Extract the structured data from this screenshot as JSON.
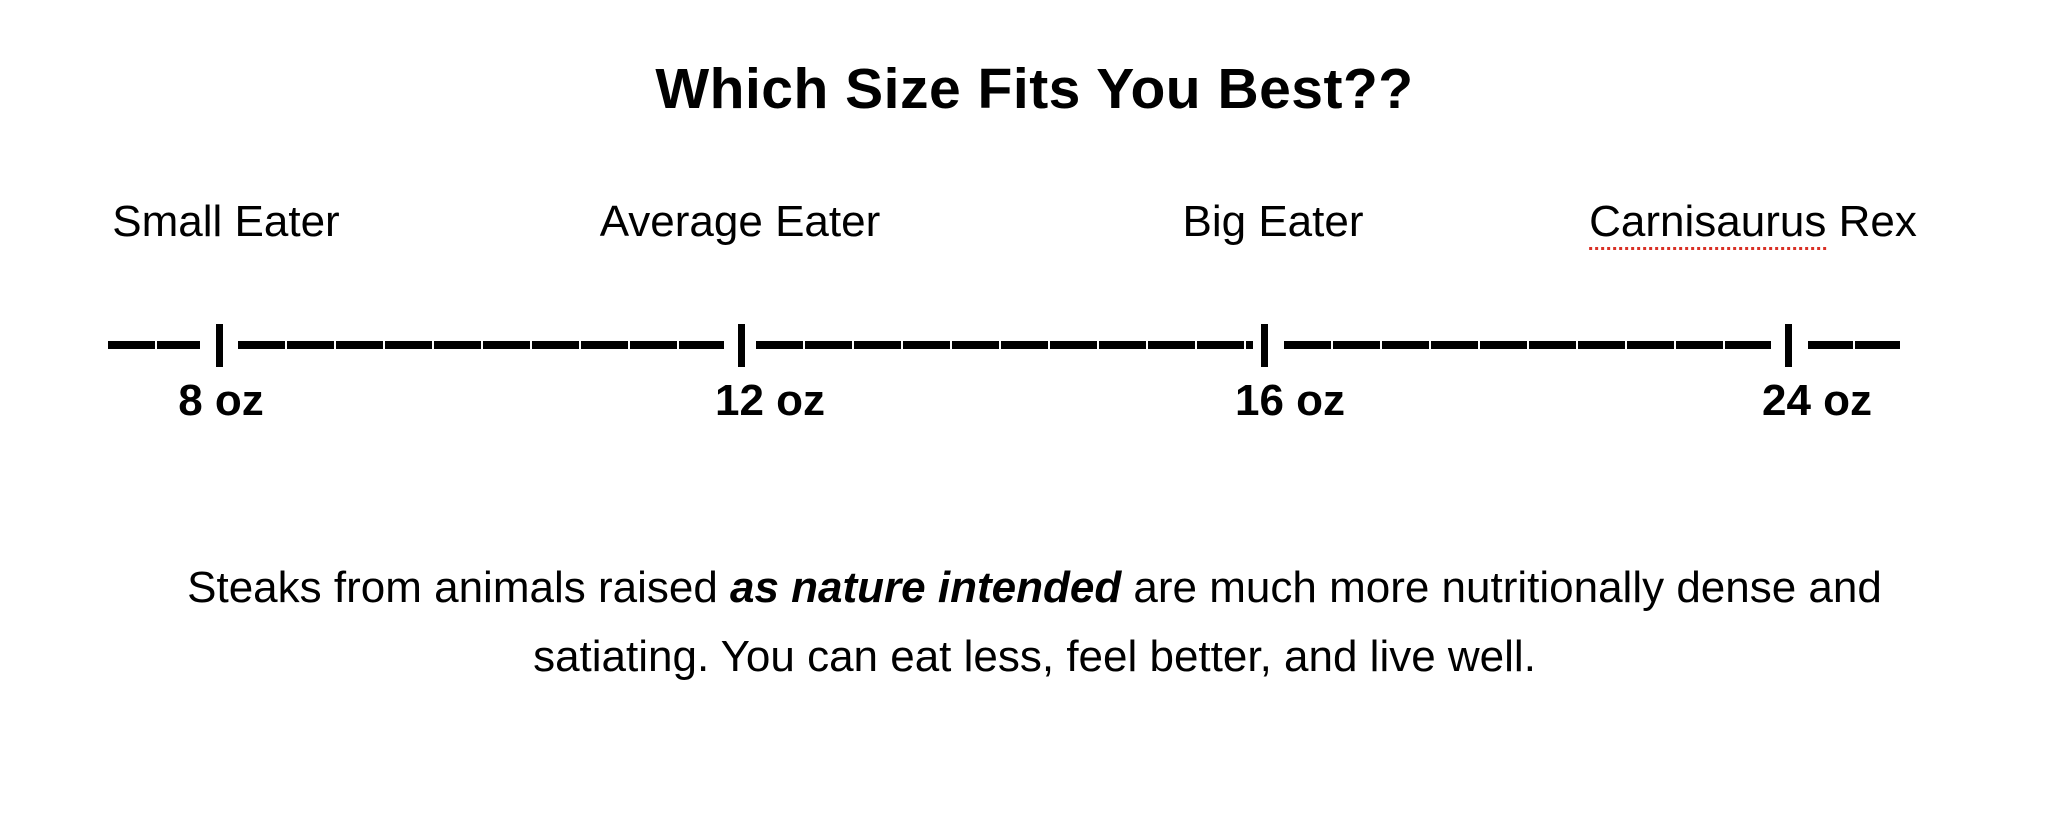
{
  "page": {
    "title": "Which Size Fits You Best??"
  },
  "scale": {
    "categories": [
      {
        "label": "Small Eater",
        "size": "8 oz"
      },
      {
        "label": "Average Eater",
        "size": "12 oz"
      },
      {
        "label": "Big Eater",
        "size": "16 oz"
      },
      {
        "label": "Carnisaurus Rex",
        "word": "Carnisaurus",
        "rest": " Rex",
        "size": "24 oz"
      }
    ],
    "tick_count": 4
  },
  "paragraph": {
    "line1_before_bold": "Steaks from animals raised ",
    "line1_bold": "as nature intended",
    "line1_after_bold": " are much more nutritionally dense and",
    "line2": "satiating. You can eat less, feel better, and live well.",
    "full_text": "Steaks from animals raised as nature intended are much more nutritionally dense and satiating. You can eat less, feel better, and live well."
  },
  "colors": {
    "text": "#000000",
    "background": "#ffffff",
    "spellcheck_underline": "#d93025"
  }
}
